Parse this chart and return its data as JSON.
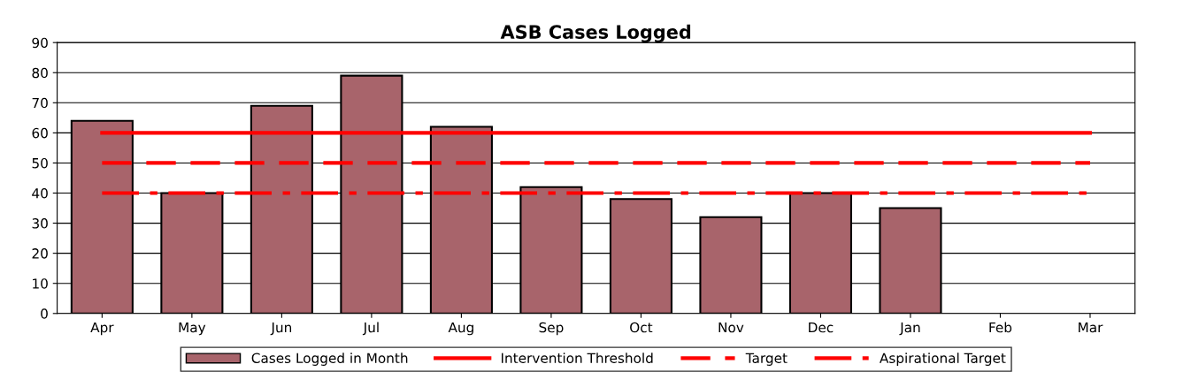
{
  "chart_data": {
    "type": "bar",
    "title": "ASB Cases Logged",
    "categories": [
      "Apr",
      "May",
      "Jun",
      "Jul",
      "Aug",
      "Sep",
      "Oct",
      "Nov",
      "Dec",
      "Jan",
      "Feb",
      "Mar"
    ],
    "series": [
      {
        "name": "Cases Logged in Month",
        "color": "#a8646b",
        "values": [
          64,
          40,
          69,
          79,
          62,
          42,
          38,
          32,
          40,
          35,
          null,
          null
        ]
      },
      {
        "name": "Intervention Threshold",
        "type": "line",
        "line_style": "solid",
        "color": "#ff0000",
        "values": [
          60,
          60,
          60,
          60,
          60,
          60,
          60,
          60,
          60,
          60,
          60,
          60
        ]
      },
      {
        "name": "Target",
        "type": "line",
        "line_style": "dashed",
        "color": "#ff0000",
        "values": [
          50,
          50,
          50,
          50,
          50,
          50,
          50,
          50,
          50,
          50,
          50,
          50
        ]
      },
      {
        "name": "Aspirational Target",
        "type": "line",
        "line_style": "dashdot",
        "color": "#ff0000",
        "values": [
          40,
          40,
          40,
          40,
          40,
          40,
          40,
          40,
          40,
          40,
          40,
          40
        ]
      }
    ],
    "ylim": [
      0,
      90
    ],
    "yticks": [
      0,
      10,
      20,
      30,
      40,
      50,
      60,
      70,
      80,
      90
    ],
    "grid": "y",
    "legend": "bottom"
  }
}
